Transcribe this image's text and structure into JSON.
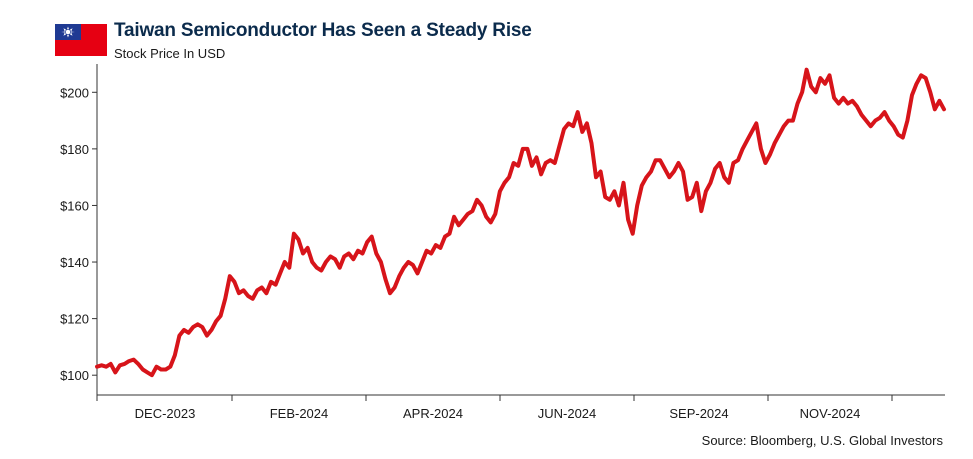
{
  "header": {
    "title": "Taiwan Semiconductor Has Seen a Steady Rise",
    "subtitle": "Stock Price In USD",
    "flag_icon": "taiwan-flag-icon"
  },
  "footer": {
    "source": "Source: Bloomberg, U.S. Global Investors"
  },
  "colors": {
    "line": "#d7141a",
    "title": "#0b2b4c",
    "flag_red": "#e60012",
    "flag_blue": "#1f3a93"
  },
  "chart_data": {
    "type": "line",
    "title": "Taiwan Semiconductor Has Seen a Steady Rise",
    "subtitle": "Stock Price In USD",
    "xlabel": "",
    "ylabel": "",
    "ylim": [
      93,
      210
    ],
    "yticks": [
      100,
      120,
      140,
      160,
      180,
      200
    ],
    "ytick_labels": [
      "$100",
      "$120",
      "$140",
      "$160",
      "$180",
      "$200"
    ],
    "xtick_labels": [
      "DEC-2023",
      "FEB-2024",
      "APR-2024",
      "JUN-2024",
      "SEP-2024",
      "NOV-2024"
    ],
    "grid": false,
    "legend": "none",
    "series": [
      {
        "values": [
          103,
          103.5,
          103,
          104,
          101,
          103.5,
          104,
          105,
          105.5,
          104,
          102,
          101,
          100,
          103,
          102,
          102,
          103,
          107,
          114,
          116,
          115,
          117,
          118,
          117,
          114,
          116,
          119,
          121,
          127,
          135,
          133,
          129,
          130,
          128,
          127,
          130,
          131,
          129,
          133,
          132,
          136,
          140,
          138,
          150,
          148,
          143,
          145,
          140,
          138,
          137,
          140,
          142,
          141,
          138,
          142,
          143,
          141,
          144,
          143,
          147,
          149,
          143,
          140,
          134,
          129,
          131,
          135,
          138,
          140,
          139,
          136,
          140,
          144,
          143,
          146,
          145,
          149,
          150,
          156,
          153,
          155,
          157,
          158,
          162,
          160,
          156,
          154,
          157,
          165,
          168,
          170,
          175,
          174,
          180,
          180,
          174,
          177,
          171,
          175,
          176,
          175,
          181,
          187,
          189,
          188,
          193,
          186,
          189,
          182,
          170,
          172,
          163,
          162,
          165,
          160,
          168,
          155,
          150,
          160,
          167,
          170,
          172,
          176,
          176,
          173,
          170,
          172,
          175,
          172,
          162,
          163,
          168,
          158,
          165,
          168,
          173,
          175,
          170,
          168,
          175,
          176,
          180,
          183,
          186,
          189,
          180,
          175,
          178,
          182,
          185,
          188,
          190,
          190,
          196,
          200,
          208,
          202,
          200,
          205,
          203,
          206,
          198,
          196,
          198,
          196,
          197,
          195,
          192,
          190,
          188,
          190,
          191,
          193,
          190,
          188,
          185,
          184,
          190,
          199,
          203,
          206,
          205,
          200,
          194,
          197,
          194
        ]
      }
    ]
  }
}
